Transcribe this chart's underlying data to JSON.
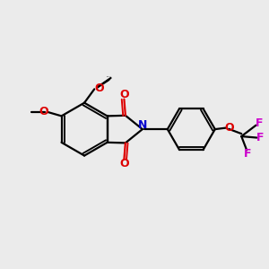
{
  "bg_color": "#ebebeb",
  "bond_color": "#000000",
  "N_color": "#0000cc",
  "O_color": "#dd0000",
  "F_color": "#cc00cc",
  "line_width": 1.6,
  "font_size": 8.5,
  "fig_w": 3.0,
  "fig_h": 3.0,
  "dpi": 100,
  "xlim": [
    0,
    10
  ],
  "ylim": [
    0,
    10
  ]
}
